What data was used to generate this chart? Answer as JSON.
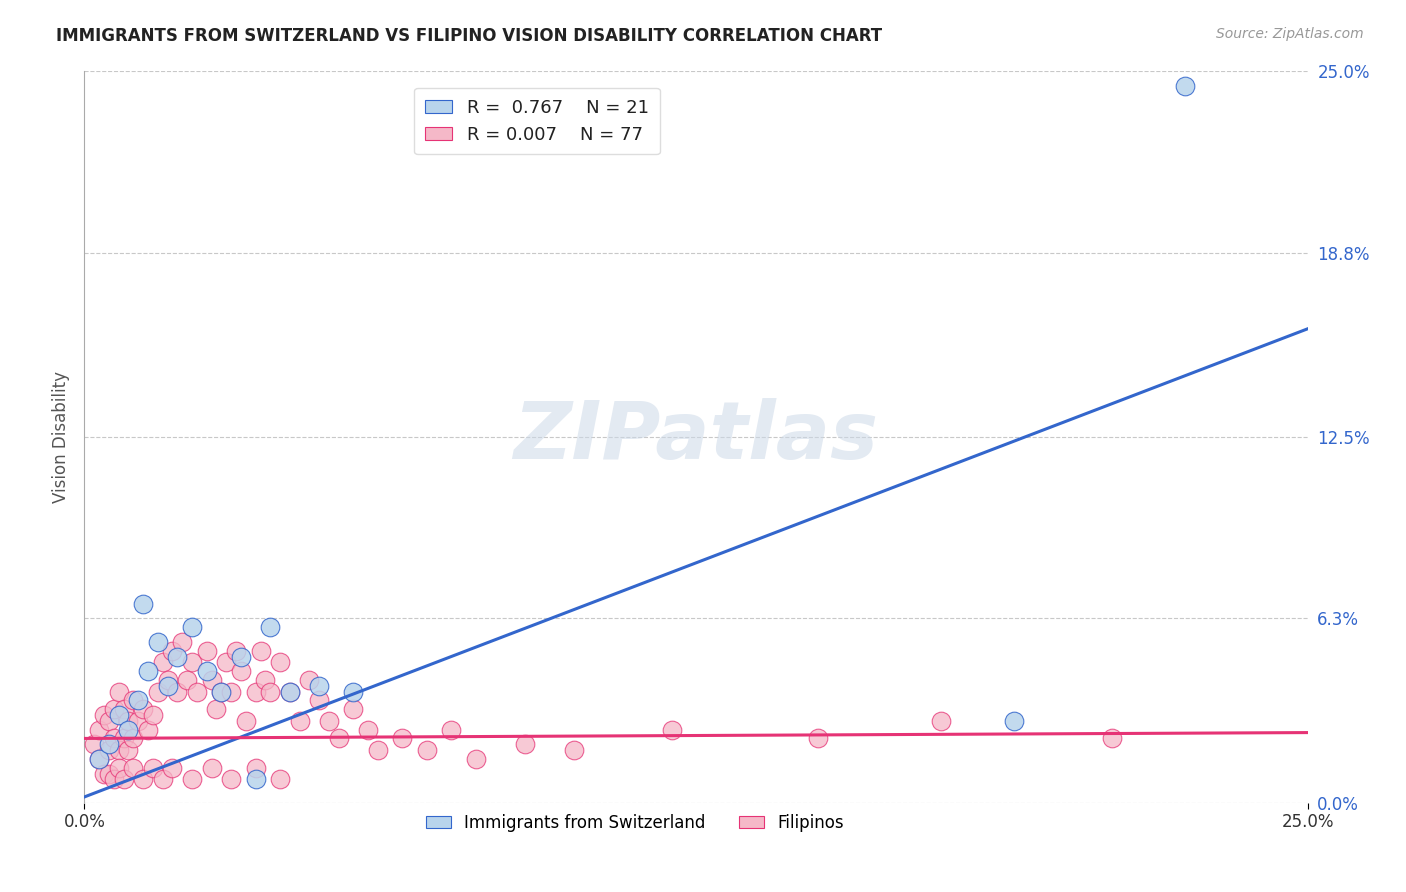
{
  "title": "IMMIGRANTS FROM SWITZERLAND VS FILIPINO VISION DISABILITY CORRELATION CHART",
  "source": "Source: ZipAtlas.com",
  "ylabel": "Vision Disability",
  "xlim": [
    0.0,
    0.25
  ],
  "ylim": [
    0.0,
    0.25
  ],
  "ytick_labels": [
    "0.0%",
    "6.3%",
    "12.5%",
    "18.8%",
    "25.0%"
  ],
  "ytick_values": [
    0.0,
    0.063,
    0.125,
    0.188,
    0.25
  ],
  "grid_color": "#c8c8c8",
  "background_color": "#ffffff",
  "swiss_color": "#b8d4ec",
  "swiss_line_color": "#3366cc",
  "filipino_color": "#f5b8c8",
  "filipino_line_color": "#e63375",
  "swiss_R": 0.767,
  "swiss_N": 21,
  "filipino_R": 0.007,
  "filipino_N": 77,
  "watermark": "ZIPatlas",
  "swiss_trend_x0": 0.0,
  "swiss_trend_y0": 0.002,
  "swiss_trend_x1": 0.25,
  "swiss_trend_y1": 0.162,
  "filipino_trend_x0": 0.0,
  "filipino_trend_y0": 0.022,
  "filipino_trend_x1": 0.25,
  "filipino_trend_y1": 0.024,
  "swiss_scatter_x": [
    0.003,
    0.005,
    0.007,
    0.009,
    0.011,
    0.013,
    0.015,
    0.017,
    0.019,
    0.022,
    0.025,
    0.028,
    0.032,
    0.038,
    0.042,
    0.048,
    0.055,
    0.19,
    0.225,
    0.035,
    0.012
  ],
  "swiss_scatter_y": [
    0.015,
    0.02,
    0.03,
    0.025,
    0.035,
    0.045,
    0.055,
    0.04,
    0.05,
    0.06,
    0.045,
    0.038,
    0.05,
    0.06,
    0.038,
    0.04,
    0.038,
    0.028,
    0.245,
    0.008,
    0.068
  ],
  "filipino_scatter_x": [
    0.002,
    0.003,
    0.003,
    0.004,
    0.004,
    0.005,
    0.005,
    0.006,
    0.006,
    0.007,
    0.007,
    0.008,
    0.008,
    0.009,
    0.009,
    0.01,
    0.01,
    0.011,
    0.012,
    0.013,
    0.014,
    0.015,
    0.016,
    0.017,
    0.018,
    0.019,
    0.02,
    0.021,
    0.022,
    0.023,
    0.025,
    0.026,
    0.027,
    0.028,
    0.029,
    0.03,
    0.031,
    0.032,
    0.033,
    0.035,
    0.036,
    0.037,
    0.038,
    0.04,
    0.042,
    0.044,
    0.046,
    0.048,
    0.05,
    0.052,
    0.055,
    0.058,
    0.06,
    0.065,
    0.07,
    0.075,
    0.08,
    0.09,
    0.1,
    0.12,
    0.15,
    0.175,
    0.21,
    0.005,
    0.006,
    0.007,
    0.008,
    0.01,
    0.012,
    0.014,
    0.016,
    0.018,
    0.022,
    0.026,
    0.03,
    0.035,
    0.04
  ],
  "filipino_scatter_y": [
    0.02,
    0.025,
    0.015,
    0.03,
    0.01,
    0.028,
    0.018,
    0.032,
    0.022,
    0.038,
    0.018,
    0.032,
    0.022,
    0.028,
    0.018,
    0.035,
    0.022,
    0.028,
    0.032,
    0.025,
    0.03,
    0.038,
    0.048,
    0.042,
    0.052,
    0.038,
    0.055,
    0.042,
    0.048,
    0.038,
    0.052,
    0.042,
    0.032,
    0.038,
    0.048,
    0.038,
    0.052,
    0.045,
    0.028,
    0.038,
    0.052,
    0.042,
    0.038,
    0.048,
    0.038,
    0.028,
    0.042,
    0.035,
    0.028,
    0.022,
    0.032,
    0.025,
    0.018,
    0.022,
    0.018,
    0.025,
    0.015,
    0.02,
    0.018,
    0.025,
    0.022,
    0.028,
    0.022,
    0.01,
    0.008,
    0.012,
    0.008,
    0.012,
    0.008,
    0.012,
    0.008,
    0.012,
    0.008,
    0.012,
    0.008,
    0.012,
    0.008
  ]
}
